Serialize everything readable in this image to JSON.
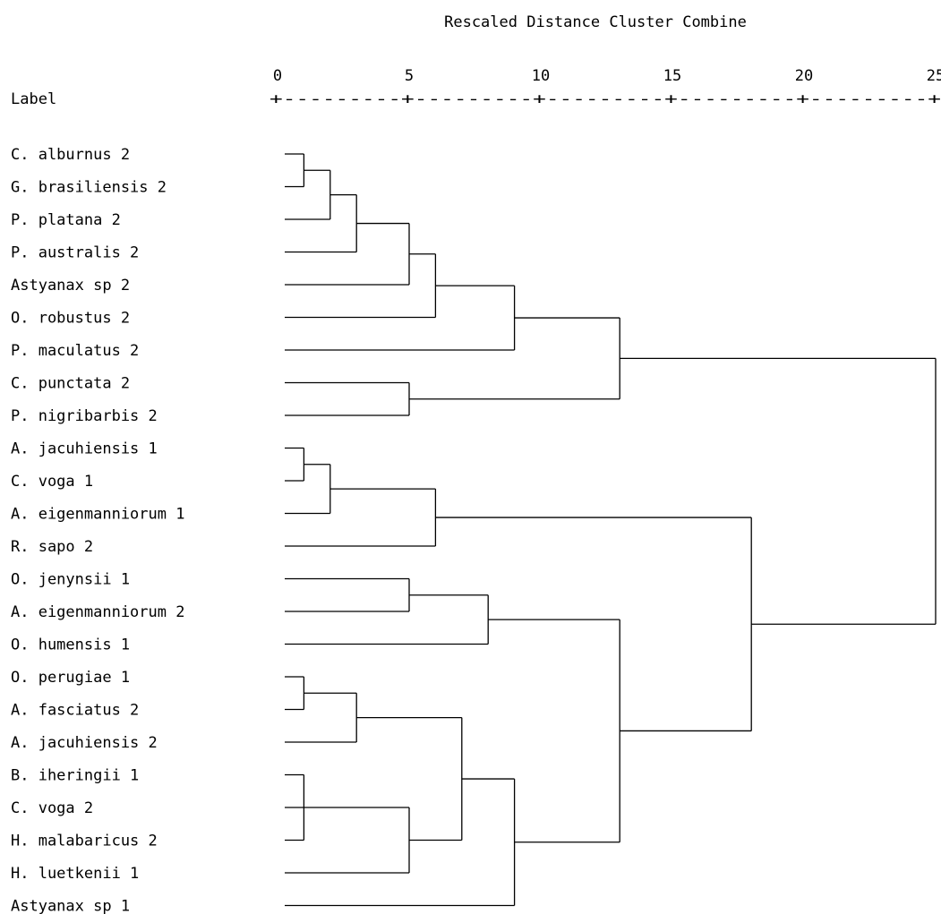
{
  "chart_data": {
    "type": "dendrogram",
    "title": "Rescaled Distance Cluster Combine",
    "label_header": "Label",
    "axis": {
      "ticks": [
        0,
        5,
        10,
        15,
        20,
        25
      ],
      "tick_labels": [
        "0",
        "5",
        "10",
        "15",
        "20",
        "25"
      ],
      "rule_text": "+---------+---------+---------+---------+---------+",
      "range": [
        0,
        25
      ]
    },
    "leaves": [
      "C. alburnus 2",
      "G. brasiliensis 2",
      "P. platana 2",
      "P. australis 2",
      "Astyanax sp 2",
      "O. robustus 2",
      "P. maculatus 2",
      "C. punctata 2",
      "P. nigribarbis 2",
      "A. jacuhiensis 1",
      "C. voga 1",
      "A. eigenmanniorum 1",
      "R. sapo 2",
      "O. jenynsii 1",
      "A. eigenmanniorum 2",
      "O. humensis 1",
      "O. perugiae 1",
      "A. fasciatus 2",
      "A. jacuhiensis 2",
      "B. iheringii 1",
      "C. voga 2",
      "H. malabaricus 2",
      "H. luetkenii 1",
      "Astyanax sp 1"
    ],
    "merges": [
      {
        "children": [
          "L0",
          "L1"
        ],
        "distance": 1
      },
      {
        "children": [
          "M0",
          "L2"
        ],
        "distance": 2
      },
      {
        "children": [
          "M1",
          "L3"
        ],
        "distance": 3
      },
      {
        "children": [
          "M2",
          "L4"
        ],
        "distance": 5
      },
      {
        "children": [
          "M3",
          "L5"
        ],
        "distance": 6
      },
      {
        "children": [
          "M4",
          "L6"
        ],
        "distance": 9
      },
      {
        "children": [
          "L7",
          "L8"
        ],
        "distance": 5
      },
      {
        "children": [
          "M5",
          "M6"
        ],
        "distance": 13
      },
      {
        "children": [
          "L9",
          "L10"
        ],
        "distance": 1
      },
      {
        "children": [
          "M8",
          "L11"
        ],
        "distance": 2
      },
      {
        "children": [
          "M9",
          "L12"
        ],
        "distance": 6
      },
      {
        "children": [
          "L13",
          "L14"
        ],
        "distance": 5
      },
      {
        "children": [
          "M11",
          "L15"
        ],
        "distance": 8
      },
      {
        "children": [
          "L16",
          "L17"
        ],
        "distance": 1
      },
      {
        "children": [
          "M13",
          "L18"
        ],
        "distance": 3
      },
      {
        "children": [
          "L19",
          "L20",
          "L21"
        ],
        "distance": 1
      },
      {
        "children": [
          "M15",
          "L22"
        ],
        "distance": 5
      },
      {
        "children": [
          "M14",
          "M16"
        ],
        "distance": 7
      },
      {
        "children": [
          "M17",
          "L23"
        ],
        "distance": 9
      },
      {
        "children": [
          "M12",
          "M18"
        ],
        "distance": 13
      },
      {
        "children": [
          "M10",
          "M19"
        ],
        "distance": 18
      },
      {
        "children": [
          "M7",
          "M20"
        ],
        "distance": 25
      }
    ]
  }
}
